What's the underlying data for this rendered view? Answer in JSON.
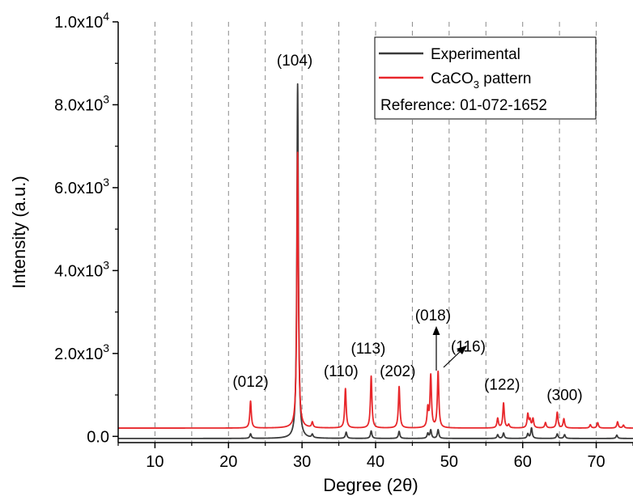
{
  "chart_data": {
    "type": "line",
    "xlabel": "Degree (2θ)",
    "ylabel": "Intensity (a.u.)",
    "xlim": [
      5,
      75
    ],
    "ylim": [
      -150,
      10000
    ],
    "x_ticks": [
      10,
      20,
      30,
      40,
      50,
      60,
      70
    ],
    "y_ticks": [
      {
        "value": 0,
        "mant": "0.0",
        "exp": ""
      },
      {
        "value": 2000,
        "mant": "2.0x10",
        "exp": "3"
      },
      {
        "value": 4000,
        "mant": "4.0x10",
        "exp": "3"
      },
      {
        "value": 6000,
        "mant": "6.0x10",
        "exp": "3"
      },
      {
        "value": 8000,
        "mant": "8.0x10",
        "exp": "3"
      },
      {
        "value": 10000,
        "mant": "1.0x10",
        "exp": "4"
      }
    ],
    "vertical_gridlines": [
      10,
      15,
      20,
      25,
      30,
      35,
      40,
      45,
      50,
      55,
      60,
      65,
      70
    ],
    "grid": "dashed vertical",
    "legend": {
      "position": "top-right",
      "entries": [
        {
          "label": "Experimental",
          "color": "#3a3a3a"
        },
        {
          "label_main": "CaCO",
          "label_sub": "3",
          "label_rest": " pattern",
          "color": "#e8272b"
        }
      ],
      "note": "Reference: 01-072-1652"
    },
    "series": [
      {
        "name": "Experimental",
        "color": "#3a3a3a",
        "baseline": -50,
        "peaks": [
          {
            "x": 23.0,
            "y": 60
          },
          {
            "x": 29.4,
            "y": 8500
          },
          {
            "x": 31.4,
            "y": 30
          },
          {
            "x": 36.0,
            "y": 100
          },
          {
            "x": 39.4,
            "y": 130
          },
          {
            "x": 43.2,
            "y": 120
          },
          {
            "x": 47.1,
            "y": 70
          },
          {
            "x": 47.5,
            "y": 150
          },
          {
            "x": 48.5,
            "y": 160
          },
          {
            "x": 56.6,
            "y": 40
          },
          {
            "x": 57.4,
            "y": 80
          },
          {
            "x": 60.7,
            "y": 60
          },
          {
            "x": 61.2,
            "y": 200
          },
          {
            "x": 64.7,
            "y": 60
          },
          {
            "x": 65.7,
            "y": 40
          },
          {
            "x": 72.8,
            "y": 30
          }
        ]
      },
      {
        "name": "CaCO3 pattern",
        "color": "#e8272b",
        "baseline": 200,
        "peaks": [
          {
            "x": 23.0,
            "y": 850
          },
          {
            "x": 29.4,
            "y": 6850
          },
          {
            "x": 31.4,
            "y": 330
          },
          {
            "x": 35.9,
            "y": 1150
          },
          {
            "x": 39.4,
            "y": 1450
          },
          {
            "x": 43.2,
            "y": 1200
          },
          {
            "x": 47.1,
            "y": 650
          },
          {
            "x": 47.5,
            "y": 1450
          },
          {
            "x": 48.5,
            "y": 1550
          },
          {
            "x": 56.6,
            "y": 430
          },
          {
            "x": 57.4,
            "y": 800
          },
          {
            "x": 58.1,
            "y": 280
          },
          {
            "x": 60.7,
            "y": 530
          },
          {
            "x": 61.0,
            "y": 380
          },
          {
            "x": 61.4,
            "y": 420
          },
          {
            "x": 63.1,
            "y": 330
          },
          {
            "x": 64.7,
            "y": 580
          },
          {
            "x": 65.6,
            "y": 420
          },
          {
            "x": 69.2,
            "y": 280
          },
          {
            "x": 70.2,
            "y": 330
          },
          {
            "x": 72.9,
            "y": 350
          },
          {
            "x": 73.7,
            "y": 270
          }
        ]
      }
    ],
    "annotations": [
      {
        "text": "(012)",
        "x": 23.0,
        "y": 1200
      },
      {
        "text": "(104)",
        "x": 29.0,
        "y": 8950
      },
      {
        "text": "(110)",
        "x": 35.3,
        "y": 1450
      },
      {
        "text": "(113)",
        "x": 39.0,
        "y": 2000
      },
      {
        "text": "(202)",
        "x": 43.0,
        "y": 1450
      },
      {
        "text": "(018)",
        "x": 47.8,
        "y": 2800
      },
      {
        "text": "(116)",
        "x": 52.6,
        "y": 2050
      },
      {
        "text": "(122)",
        "x": 57.2,
        "y": 1130
      },
      {
        "text": "(300)",
        "x": 65.7,
        "y": 870
      }
    ]
  }
}
